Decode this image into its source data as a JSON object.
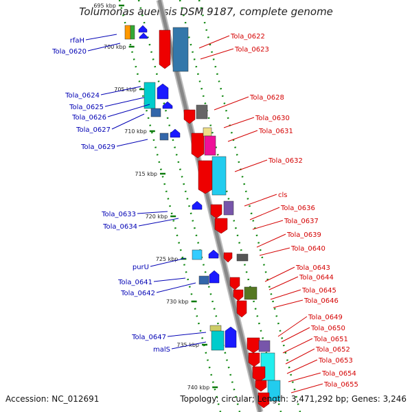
{
  "title": "Tolumonas auensis DSM 9187, complete genome",
  "footer": {
    "accession": "Accession: NC_012691",
    "summary": "Topology: circular; Length: 3,471,292 bp; Genes: 3,246"
  },
  "colors": {
    "left_label": "#0000b4",
    "right_label": "#d40000",
    "forward_arrow": "#1a1aff",
    "reverse_arrow": "#ee0000",
    "backbone": "#888888",
    "tick": "#0a7a0a"
  },
  "ticks": [
    "695 kbp",
    "700 kbp",
    "705 kbp",
    "710 kbp",
    "715 kbp",
    "720 kbp",
    "725 kbp",
    "730 kbp",
    "735 kbp",
    "740 kbp"
  ],
  "left_genes": [
    "rfaH",
    "Tola_0620",
    "Tola_0624",
    "Tola_0625",
    "Tola_0626",
    "Tola_0627",
    "Tola_0629",
    "Tola_0633",
    "Tola_0634",
    "purU",
    "Tola_0641",
    "Tola_0642",
    "Tola_0647",
    "malS"
  ],
  "right_genes": [
    "Tola_0622",
    "Tola_0623",
    "Tola_0628",
    "Tola_0630",
    "Tola_0631",
    "Tola_0632",
    "cls",
    "Tola_0636",
    "Tola_0637",
    "Tola_0639",
    "Tola_0640",
    "Tola_0643",
    "Tola_0644",
    "Tola_0645",
    "Tola_0646",
    "Tola_0649",
    "Tola_0650",
    "Tola_0651",
    "Tola_0652",
    "Tola_0653",
    "Tola_0654",
    "Tola_0655"
  ]
}
